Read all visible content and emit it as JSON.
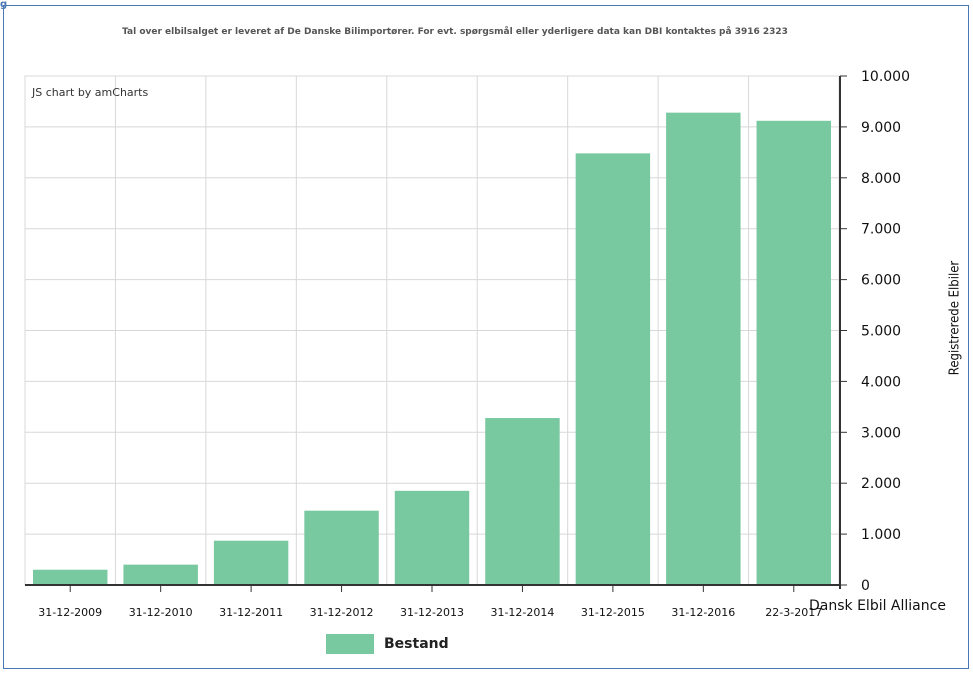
{
  "page": {
    "corner_label": "g"
  },
  "chart_data": {
    "type": "bar",
    "subtitle": "Tal over elbilsalget er leveret af De Danske Bilimportører. For evt. spørgsmål eller yderligere data kan DBI kontaktes på 3916 2323",
    "credit": "JS chart by amCharts",
    "categories": [
      "31-12-2009",
      "31-12-2010",
      "31-12-2011",
      "31-12-2012",
      "31-12-2013",
      "31-12-2014",
      "31-12-2015",
      "31-12-2016",
      "22-3-2017"
    ],
    "series": [
      {
        "name": "Bestand",
        "values": [
          300,
          400,
          870,
          1460,
          1850,
          3280,
          8480,
          9280,
          9120
        ]
      }
    ],
    "ylabel": "Registrerede Elbiler",
    "ylim": [
      0,
      10000
    ],
    "yticks": [
      "0",
      "1.000",
      "2.000",
      "3.000",
      "4.000",
      "5.000",
      "6.000",
      "7.000",
      "8.000",
      "9.000",
      "10.000"
    ],
    "y_axis_position": "right",
    "grid": true,
    "legend_position": "bottom",
    "source_label": "Dansk Elbil Alliance",
    "colors": {
      "bar": "#78c8a0",
      "grid": "#d8d8d8",
      "axis": "#333333"
    }
  }
}
